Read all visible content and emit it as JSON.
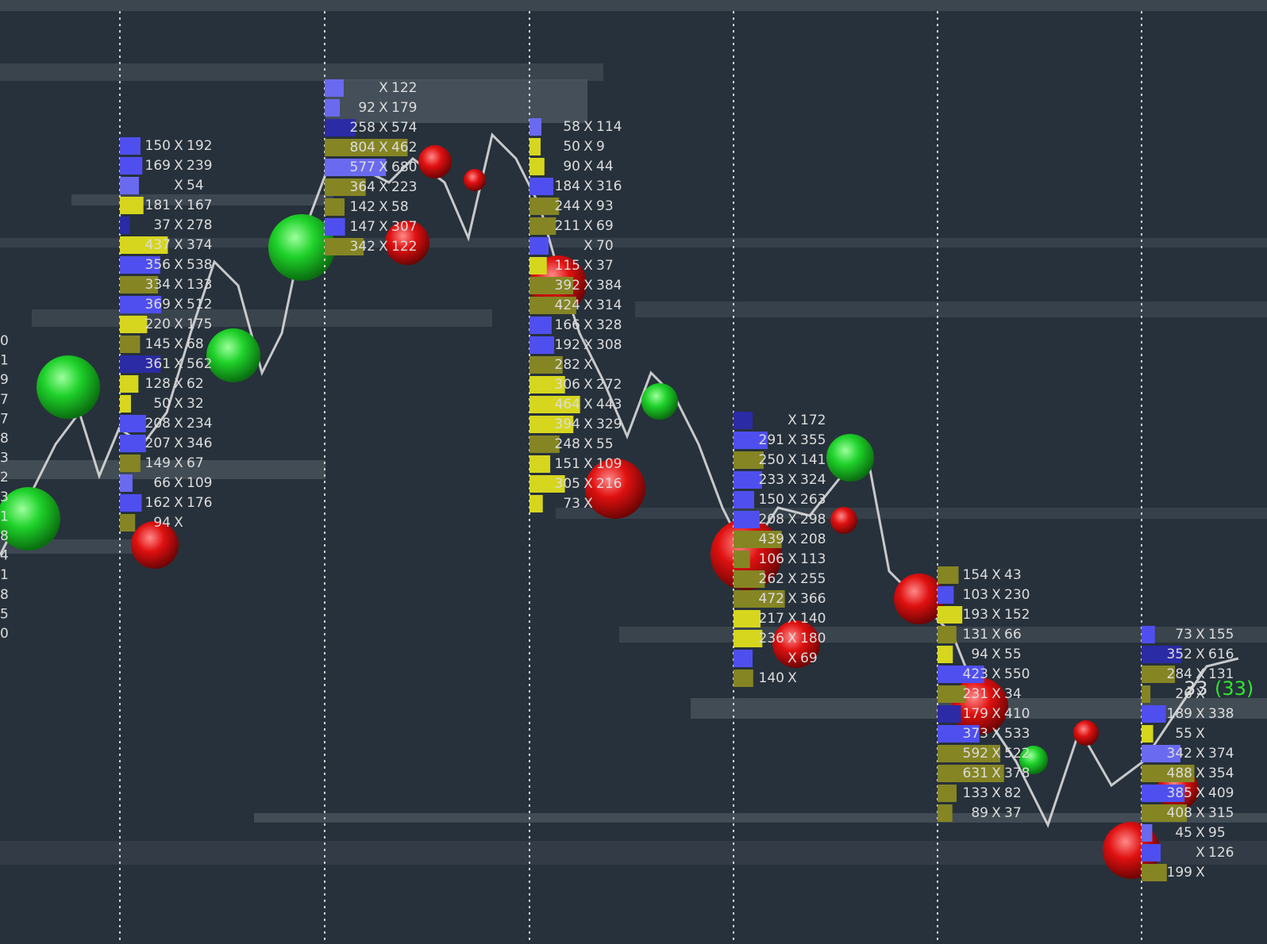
{
  "separator": "X",
  "price_marker": {
    "price": "33",
    "change": "(33)"
  },
  "left_edge_labels": [
    "0",
    "1",
    "9",
    "7",
    "7",
    "8",
    "3",
    "2",
    "3",
    "1",
    "8",
    "4",
    "1",
    "8",
    "5",
    "0"
  ],
  "columns": [
    {
      "rows": [
        {
          "bid": 150,
          "ask": 192,
          "color": "#4f4ff0"
        },
        {
          "bid": 169,
          "ask": 239,
          "color": "#4f4ff0"
        },
        {
          "bid": null,
          "ask": 54,
          "color": "#6a6af0"
        },
        {
          "bid": 181,
          "ask": 167,
          "color": "#d6d61e"
        },
        {
          "bid": 37,
          "ask": 278,
          "color": "#2b2ba6"
        },
        {
          "bid": 437,
          "ask": 374,
          "color": "#d6d61e"
        },
        {
          "bid": 356,
          "ask": 538,
          "color": "#4f4ff0"
        },
        {
          "bid": 334,
          "ask": 133,
          "color": "#858524"
        },
        {
          "bid": 369,
          "ask": 512,
          "color": "#4f4ff0"
        },
        {
          "bid": 220,
          "ask": 175,
          "color": "#d6d61e"
        },
        {
          "bid": 145,
          "ask": 68,
          "color": "#858524"
        },
        {
          "bid": 361,
          "ask": 562,
          "color": "#2b2ba6"
        },
        {
          "bid": 128,
          "ask": 62,
          "color": "#d6d61e"
        },
        {
          "bid": 50,
          "ask": 32,
          "color": "#d6d61e"
        },
        {
          "bid": 208,
          "ask": 234,
          "color": "#4f4ff0"
        },
        {
          "bid": 207,
          "ask": 346,
          "color": "#4f4ff0"
        },
        {
          "bid": 149,
          "ask": 67,
          "color": "#858524"
        },
        {
          "bid": 66,
          "ask": 109,
          "color": "#6a6af0"
        },
        {
          "bid": 162,
          "ask": 176,
          "color": "#4f4ff0"
        },
        {
          "bid": 94,
          "ask": null,
          "color": "#858524"
        }
      ]
    },
    {
      "rows": [
        {
          "bid": null,
          "ask": 122,
          "color": "#6a6af0"
        },
        {
          "bid": 92,
          "ask": 179,
          "color": "#6a6af0"
        },
        {
          "bid": 258,
          "ask": 574,
          "color": "#2b2ba6"
        },
        {
          "bid": 804,
          "ask": 462,
          "color": "#858524"
        },
        {
          "bid": 577,
          "ask": 680,
          "color": "#6a6af0"
        },
        {
          "bid": 364,
          "ask": 223,
          "color": "#858524"
        },
        {
          "bid": 142,
          "ask": 58,
          "color": "#858524"
        },
        {
          "bid": 147,
          "ask": 307,
          "color": "#4f4ff0"
        },
        {
          "bid": 342,
          "ask": 122,
          "color": "#858524"
        }
      ]
    },
    {
      "rows": [
        {
          "bid": 58,
          "ask": 114,
          "color": "#6a6af0"
        },
        {
          "bid": 50,
          "ask": 9,
          "color": "#d6d61e"
        },
        {
          "bid": 90,
          "ask": 44,
          "color": "#d6d61e"
        },
        {
          "bid": 184,
          "ask": 316,
          "color": "#4f4ff0"
        },
        {
          "bid": 244,
          "ask": 93,
          "color": "#858524"
        },
        {
          "bid": 211,
          "ask": 69,
          "color": "#858524"
        },
        {
          "bid": null,
          "ask": 70,
          "color": "#4f4ff0"
        },
        {
          "bid": 115,
          "ask": 37,
          "color": "#d6d61e"
        },
        {
          "bid": 392,
          "ask": 384,
          "color": "#858524"
        },
        {
          "bid": 424,
          "ask": 314,
          "color": "#858524"
        },
        {
          "bid": 166,
          "ask": 328,
          "color": "#4f4ff0"
        },
        {
          "bid": 192,
          "ask": 308,
          "color": "#4f4ff0"
        },
        {
          "bid": 282,
          "ask": null,
          "color": "#858524"
        },
        {
          "bid": 306,
          "ask": 272,
          "color": "#d6d61e"
        },
        {
          "bid": 464,
          "ask": 443,
          "color": "#d6d61e"
        },
        {
          "bid": 394,
          "ask": 329,
          "color": "#d6d61e"
        },
        {
          "bid": 248,
          "ask": 55,
          "color": "#858524"
        },
        {
          "bid": 151,
          "ask": 109,
          "color": "#d6d61e"
        },
        {
          "bid": 305,
          "ask": 216,
          "color": "#d6d61e"
        },
        {
          "bid": 73,
          "ask": null,
          "color": "#d6d61e"
        }
      ]
    },
    {
      "rows": [
        {
          "bid": null,
          "ask": 172,
          "color": "#2b2ba6"
        },
        {
          "bid": 291,
          "ask": 355,
          "color": "#4f4ff0"
        },
        {
          "bid": 250,
          "ask": 141,
          "color": "#858524"
        },
        {
          "bid": 233,
          "ask": 324,
          "color": "#4f4ff0"
        },
        {
          "bid": 150,
          "ask": 263,
          "color": "#4f4ff0"
        },
        {
          "bid": 208,
          "ask": 298,
          "color": "#4f4ff0"
        },
        {
          "bid": 439,
          "ask": 208,
          "color": "#858524"
        },
        {
          "bid": 106,
          "ask": 113,
          "color": "#858524"
        },
        {
          "bid": 262,
          "ask": 255,
          "color": "#858524"
        },
        {
          "bid": 472,
          "ask": 366,
          "color": "#858524"
        },
        {
          "bid": 217,
          "ask": 140,
          "color": "#d6d61e"
        },
        {
          "bid": 236,
          "ask": 180,
          "color": "#d6d61e"
        },
        {
          "bid": null,
          "ask": 69,
          "color": "#4f4ff0"
        },
        {
          "bid": 140,
          "ask": null,
          "color": "#858524"
        }
      ]
    },
    {
      "rows": [
        {
          "bid": 154,
          "ask": 43,
          "color": "#858524"
        },
        {
          "bid": 103,
          "ask": 230,
          "color": "#4f4ff0"
        },
        {
          "bid": 193,
          "ask": 152,
          "color": "#d6d61e"
        },
        {
          "bid": 131,
          "ask": 66,
          "color": "#858524"
        },
        {
          "bid": 94,
          "ask": 55,
          "color": "#d6d61e"
        },
        {
          "bid": 423,
          "ask": 550,
          "color": "#4f4ff0"
        },
        {
          "bid": 231,
          "ask": 34,
          "color": "#858524"
        },
        {
          "bid": 179,
          "ask": 410,
          "color": "#2b2ba6"
        },
        {
          "bid": 373,
          "ask": 533,
          "color": "#4f4ff0"
        },
        {
          "bid": 592,
          "ask": 522,
          "color": "#858524"
        },
        {
          "bid": 631,
          "ask": 378,
          "color": "#858524"
        },
        {
          "bid": 133,
          "ask": 82,
          "color": "#858524"
        },
        {
          "bid": 89,
          "ask": 37,
          "color": "#858524"
        }
      ]
    },
    {
      "rows": [
        {
          "bid": 73,
          "ask": 155,
          "color": "#4f4ff0"
        },
        {
          "bid": 352,
          "ask": 616,
          "color": "#2b2ba6"
        },
        {
          "bid": 284,
          "ask": 131,
          "color": "#858524"
        },
        {
          "bid": 26,
          "ask": null,
          "color": "#858524"
        },
        {
          "bid": 189,
          "ask": 338,
          "color": "#4f4ff0"
        },
        {
          "bid": 55,
          "ask": null,
          "color": "#d6d61e"
        },
        {
          "bid": 342,
          "ask": 374,
          "color": "#6a6af0"
        },
        {
          "bid": 488,
          "ask": 354,
          "color": "#858524"
        },
        {
          "bid": 385,
          "ask": 409,
          "color": "#4f4ff0"
        },
        {
          "bid": 408,
          "ask": 315,
          "color": "#858524"
        },
        {
          "bid": 45,
          "ask": 95,
          "color": "#6a6af0"
        },
        {
          "bid": null,
          "ask": 126,
          "color": "#4f4ff0"
        },
        {
          "bid": 199,
          "ask": null,
          "color": "#858524"
        }
      ]
    }
  ]
}
